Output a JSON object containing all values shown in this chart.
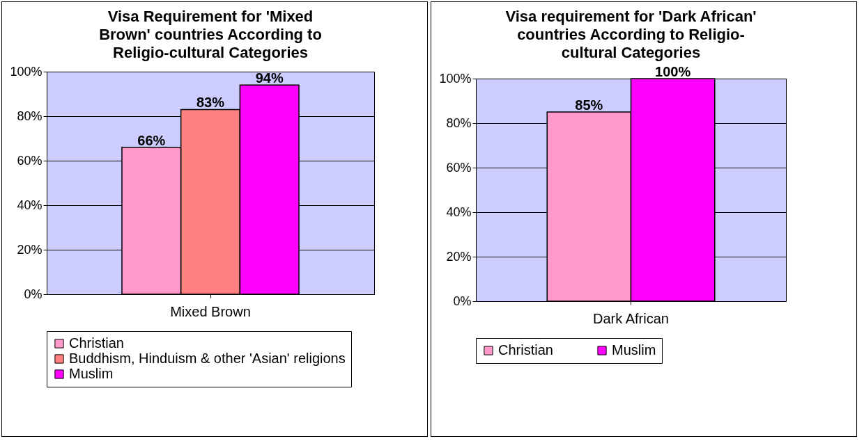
{
  "chart_data": [
    {
      "type": "bar",
      "title": "Visa Requirement for 'Mixed Brown' countries According to Religio-cultural Categories",
      "categories": [
        "Mixed Brown"
      ],
      "series": [
        {
          "name": "Christian",
          "color": "#ff99cc",
          "values": [
            66
          ],
          "value_labels": [
            "66%"
          ]
        },
        {
          "name": "Buddhism, Hinduism & other 'Asian' religions",
          "color": "#ff8080",
          "values": [
            83
          ],
          "value_labels": [
            "83%"
          ]
        },
        {
          "name": "Muslim",
          "color": "#ff00ff",
          "values": [
            94
          ],
          "value_labels": [
            "94%"
          ]
        }
      ],
      "ylim": [
        0,
        100
      ],
      "yticks": [
        {
          "value": 0,
          "label": "0%"
        },
        {
          "value": 20,
          "label": "20%"
        },
        {
          "value": 40,
          "label": "40%"
        },
        {
          "value": 60,
          "label": "60%"
        },
        {
          "value": 80,
          "label": "80%"
        },
        {
          "value": 100,
          "label": "100%"
        }
      ],
      "grid": "y",
      "legend": "bottom"
    },
    {
      "type": "bar",
      "title": "Visa requirement for 'Dark African' countries According to Religio-cultural Categories",
      "categories": [
        "Dark African"
      ],
      "series": [
        {
          "name": "Christian",
          "color": "#ff99cc",
          "values": [
            85
          ],
          "value_labels": [
            "85%"
          ]
        },
        {
          "name": "Muslim",
          "color": "#ff00ff",
          "values": [
            100
          ],
          "value_labels": [
            "100%"
          ]
        }
      ],
      "ylim": [
        0,
        100
      ],
      "yticks": [
        {
          "value": 0,
          "label": "0%"
        },
        {
          "value": 20,
          "label": "20%"
        },
        {
          "value": 40,
          "label": "40%"
        },
        {
          "value": 60,
          "label": "60%"
        },
        {
          "value": 80,
          "label": "80%"
        },
        {
          "value": 100,
          "label": "100%"
        }
      ],
      "grid": "y",
      "legend": "bottom"
    }
  ]
}
